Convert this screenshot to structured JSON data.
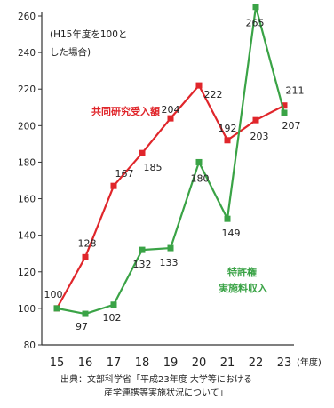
{
  "chart_data": {
    "type": "line",
    "note": "(H15年度を100と\nした場合)",
    "x_unit": "(年度)",
    "categories": [
      "15",
      "16",
      "17",
      "18",
      "19",
      "20",
      "21",
      "22",
      "23"
    ],
    "ylim": [
      80,
      260
    ],
    "yticks": [
      80,
      100,
      120,
      140,
      160,
      180,
      200,
      220,
      240,
      260
    ],
    "series": [
      {
        "name": "共同研究受入額",
        "color": "#e0262b",
        "values": [
          100,
          128,
          167,
          185,
          204,
          222,
          192,
          203,
          211
        ]
      },
      {
        "name": "特許権\n実施料収入",
        "color": "#3aa346",
        "values": [
          100,
          97,
          102,
          132,
          133,
          180,
          149,
          265,
          207
        ]
      }
    ],
    "data_labels": [
      {
        "series": 0,
        "index": 0,
        "text": "100"
      },
      {
        "series": 0,
        "index": 1,
        "text": "128"
      },
      {
        "series": 0,
        "index": 2,
        "text": "167"
      },
      {
        "series": 0,
        "index": 3,
        "text": "185"
      },
      {
        "series": 0,
        "index": 4,
        "text": "204"
      },
      {
        "series": 0,
        "index": 5,
        "text": "222"
      },
      {
        "series": 0,
        "index": 6,
        "text": "192"
      },
      {
        "series": 0,
        "index": 7,
        "text": "203"
      },
      {
        "series": 0,
        "index": 8,
        "text": "211"
      },
      {
        "series": 1,
        "index": 1,
        "text": "97"
      },
      {
        "series": 1,
        "index": 2,
        "text": "102"
      },
      {
        "series": 1,
        "index": 3,
        "text": "132"
      },
      {
        "series": 1,
        "index": 4,
        "text": "133"
      },
      {
        "series": 1,
        "index": 5,
        "text": "180"
      },
      {
        "series": 1,
        "index": 6,
        "text": "149"
      },
      {
        "series": 1,
        "index": 7,
        "text": "265"
      },
      {
        "series": 1,
        "index": 8,
        "text": "207"
      }
    ]
  },
  "source": {
    "line1": "出典：文部科学省「平成23年度 大学等における",
    "line2": "産学連携等実施状況について」"
  }
}
